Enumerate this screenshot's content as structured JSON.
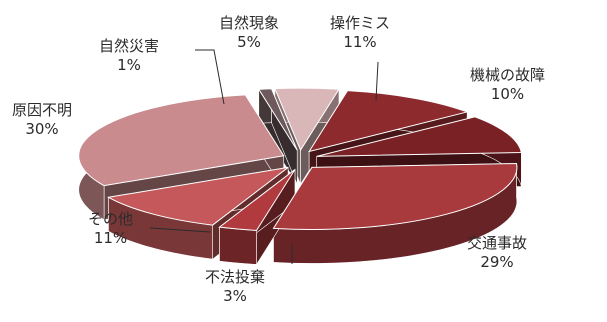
{
  "chart_data": {
    "type": "pie",
    "exploded": true,
    "style": "3d",
    "slices": [
      {
        "name": "操作ミス",
        "value": 11,
        "label": "11%",
        "color": "#8c2a2e"
      },
      {
        "name": "機械の故障",
        "value": 10,
        "label": "10%",
        "color": "#7a2126"
      },
      {
        "name": "交通事故",
        "value": 29,
        "label": "29%",
        "color": "#a8393d"
      },
      {
        "name": "不法投棄",
        "value": 3,
        "label": "3%",
        "color": "#b03a3e"
      },
      {
        "name": "その他",
        "value": 11,
        "label": "11%",
        "color": "#c4585a"
      },
      {
        "name": "原因不明",
        "value": 30,
        "label": "30%",
        "color": "#c98b8d"
      },
      {
        "name": "自然災害",
        "value": 1,
        "label": "1%",
        "color": "#6e5a5c"
      },
      {
        "name": "自然現象",
        "value": 5,
        "label": "5%",
        "color": "#d9b7b8"
      }
    ]
  }
}
